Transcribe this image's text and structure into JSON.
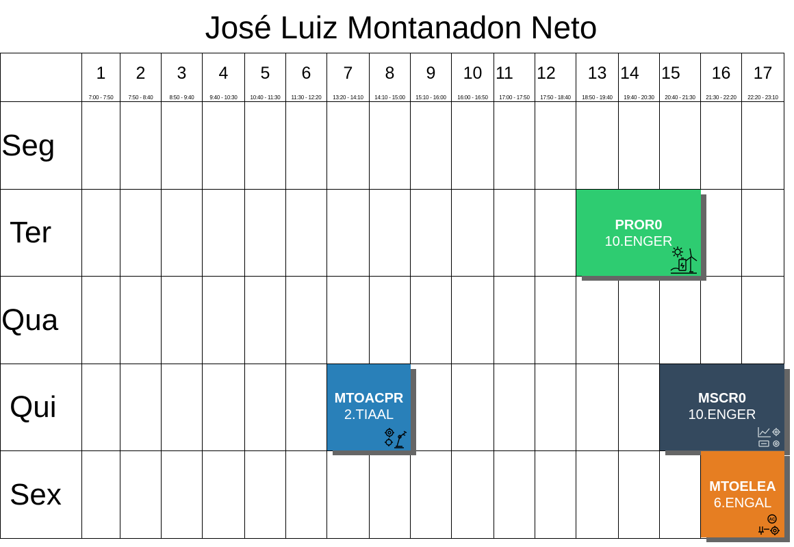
{
  "title": "José Luiz Montanadon Neto",
  "periods": [
    {
      "num": "1",
      "time": "7:00 - 7:50"
    },
    {
      "num": "2",
      "time": "7:50 - 8:40"
    },
    {
      "num": "3",
      "time": "8:50 - 9:40"
    },
    {
      "num": "4",
      "time": "9:40 - 10:30"
    },
    {
      "num": "5",
      "time": "10:40 - 11:30"
    },
    {
      "num": "6",
      "time": "11:30 - 12:20"
    },
    {
      "num": "7",
      "time": "13:20 - 14:10"
    },
    {
      "num": "8",
      "time": "14:10 - 15:00"
    },
    {
      "num": "9",
      "time": "15:10 - 16:00"
    },
    {
      "num": "10",
      "time": "16:00 - 16:50"
    },
    {
      "num": "11",
      "time": "17:00 - 17:50"
    },
    {
      "num": "12",
      "time": "17:50 - 18:40"
    },
    {
      "num": "13",
      "time": "18:50 - 19:40"
    },
    {
      "num": "14",
      "time": "19:40 - 20:30"
    },
    {
      "num": "15",
      "time": "20:40 - 21:30"
    },
    {
      "num": "16",
      "time": "21:30 - 22:20"
    },
    {
      "num": "17",
      "time": "22:20 - 23:10"
    }
  ],
  "days": [
    "Seg",
    "Ter",
    "Qua",
    "Qui",
    "Sex"
  ],
  "courses": [
    {
      "code": "PROR0",
      "group": "10.ENGER",
      "color": "#2ecc71",
      "icon": "renewable-energy-icon"
    },
    {
      "code": "MTOACPR",
      "group": "2.TIAAL",
      "color": "#2980b9",
      "icon": "robotic-arm-gears-icon"
    },
    {
      "code": "MSCR0",
      "group": "10.ENGER",
      "color": "#34495e",
      "icon": "monitoring-gears-icon"
    },
    {
      "code": "MTOELEA",
      "group": "6.ENGAL",
      "color": "#e67e22",
      "icon": "electrical-ac-gear-icon"
    }
  ]
}
